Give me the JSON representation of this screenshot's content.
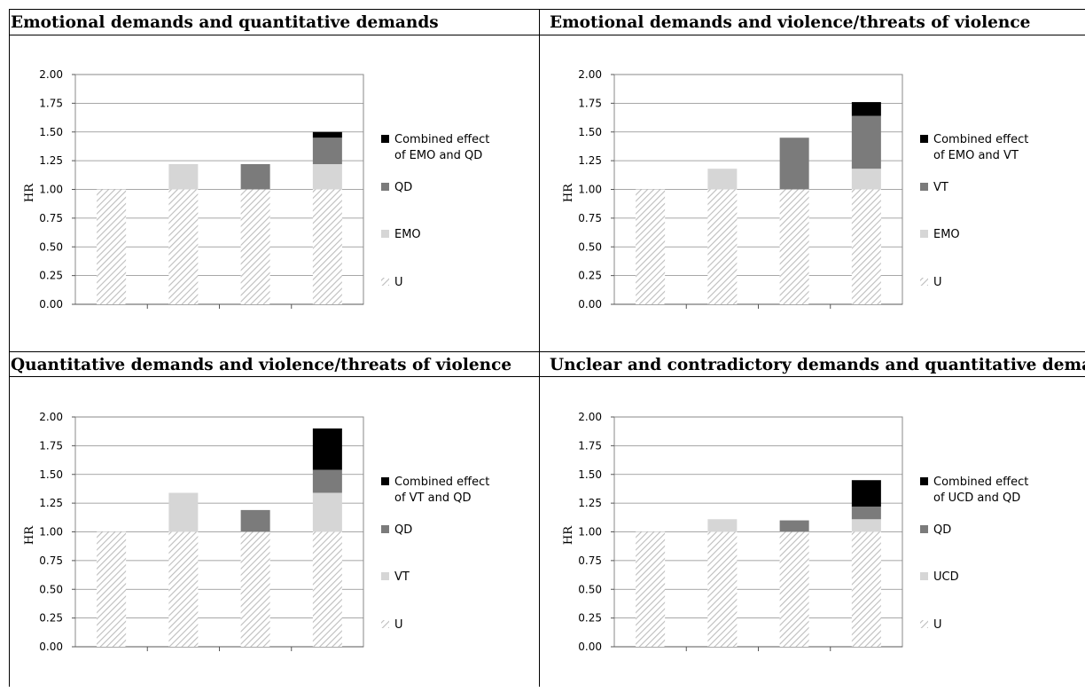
{
  "colors": {
    "U_stroke": "#bdbdbd",
    "first": "#d6d6d6",
    "second": "#7b7b7b",
    "combined": "#000000"
  },
  "chart_data": [
    {
      "type": "bar",
      "stacked": true,
      "title": "Emotional demands and quantitative demands",
      "ylabel": "HR",
      "ylim": [
        0,
        2
      ],
      "yticks": [
        "0.00",
        "0.25",
        "0.50",
        "0.75",
        "1.00",
        "1.25",
        "1.50",
        "1.75",
        "2.00"
      ],
      "categories": [
        "",
        "",
        "",
        ""
      ],
      "series": [
        {
          "name": "U",
          "values": [
            1.0,
            1.0,
            1.0,
            1.0
          ]
        },
        {
          "name": "EMO",
          "values": [
            0,
            0.22,
            0,
            0.22
          ]
        },
        {
          "name": "QD",
          "values": [
            0,
            0,
            0.22,
            0.23
          ]
        },
        {
          "name": "Combined effect of EMO and QD",
          "values": [
            0,
            0,
            0,
            0.05
          ]
        }
      ],
      "legend_lines": [
        [
          "Combined effect",
          "of EMO and QD"
        ],
        [
          "QD"
        ],
        [
          "EMO"
        ],
        [
          "U"
        ]
      ]
    },
    {
      "type": "bar",
      "stacked": true,
      "title": "Emotional demands and violence/threats of violence",
      "ylabel": "HR",
      "ylim": [
        0,
        2
      ],
      "yticks": [
        "0.00",
        "0.25",
        "0.50",
        "0.75",
        "1.00",
        "1.25",
        "1.50",
        "1.75",
        "2.00"
      ],
      "categories": [
        "",
        "",
        "",
        ""
      ],
      "series": [
        {
          "name": "U",
          "values": [
            1.0,
            1.0,
            1.0,
            1.0
          ]
        },
        {
          "name": "EMO",
          "values": [
            0,
            0.18,
            0,
            0.18
          ]
        },
        {
          "name": "VT",
          "values": [
            0,
            0,
            0.45,
            0.46
          ]
        },
        {
          "name": "Combined effect of EMO and VT",
          "values": [
            0,
            0,
            0,
            0.12
          ]
        }
      ],
      "legend_lines": [
        [
          "Combined effect",
          "of EMO and VT"
        ],
        [
          "VT"
        ],
        [
          "EMO"
        ],
        [
          "U"
        ]
      ]
    },
    {
      "type": "bar",
      "stacked": true,
      "title": "Quantitative demands and violence/threats of violence",
      "ylabel": "HR",
      "ylim": [
        0,
        2
      ],
      "yticks": [
        "0.00",
        "0.25",
        "0.50",
        "0.75",
        "1.00",
        "1.25",
        "1.50",
        "1.75",
        "2.00"
      ],
      "categories": [
        "",
        "",
        "",
        ""
      ],
      "series": [
        {
          "name": "U",
          "values": [
            1.0,
            1.0,
            1.0,
            1.0
          ]
        },
        {
          "name": "VT",
          "values": [
            0,
            0.34,
            0,
            0.34
          ]
        },
        {
          "name": "QD",
          "values": [
            0,
            0,
            0.19,
            0.2
          ]
        },
        {
          "name": "Combined effect of VT and QD",
          "values": [
            0,
            0,
            0,
            0.36
          ]
        }
      ],
      "legend_lines": [
        [
          "Combined effect",
          "of VT and QD"
        ],
        [
          "QD"
        ],
        [
          "VT"
        ],
        [
          "U"
        ]
      ]
    },
    {
      "type": "bar",
      "stacked": true,
      "title": "Unclear and contradictory demands and quantitative demands",
      "ylabel": "HR",
      "ylim": [
        0,
        2
      ],
      "yticks": [
        "0.00",
        "0.25",
        "0.50",
        "0.75",
        "1.00",
        "1.25",
        "1.50",
        "1.75",
        "2.00"
      ],
      "categories": [
        "",
        "",
        "",
        ""
      ],
      "series": [
        {
          "name": "U",
          "values": [
            1.0,
            1.0,
            1.0,
            1.0
          ]
        },
        {
          "name": "UCD",
          "values": [
            0,
            0.11,
            0,
            0.11
          ]
        },
        {
          "name": "QD",
          "values": [
            0,
            0,
            0.1,
            0.11
          ]
        },
        {
          "name": "Combined effect of UCD and QD",
          "values": [
            0,
            0,
            0,
            0.23
          ]
        }
      ],
      "legend_lines": [
        [
          "Combined effect",
          "of UCD and QD"
        ],
        [
          "QD"
        ],
        [
          "UCD"
        ],
        [
          "U"
        ]
      ]
    }
  ]
}
